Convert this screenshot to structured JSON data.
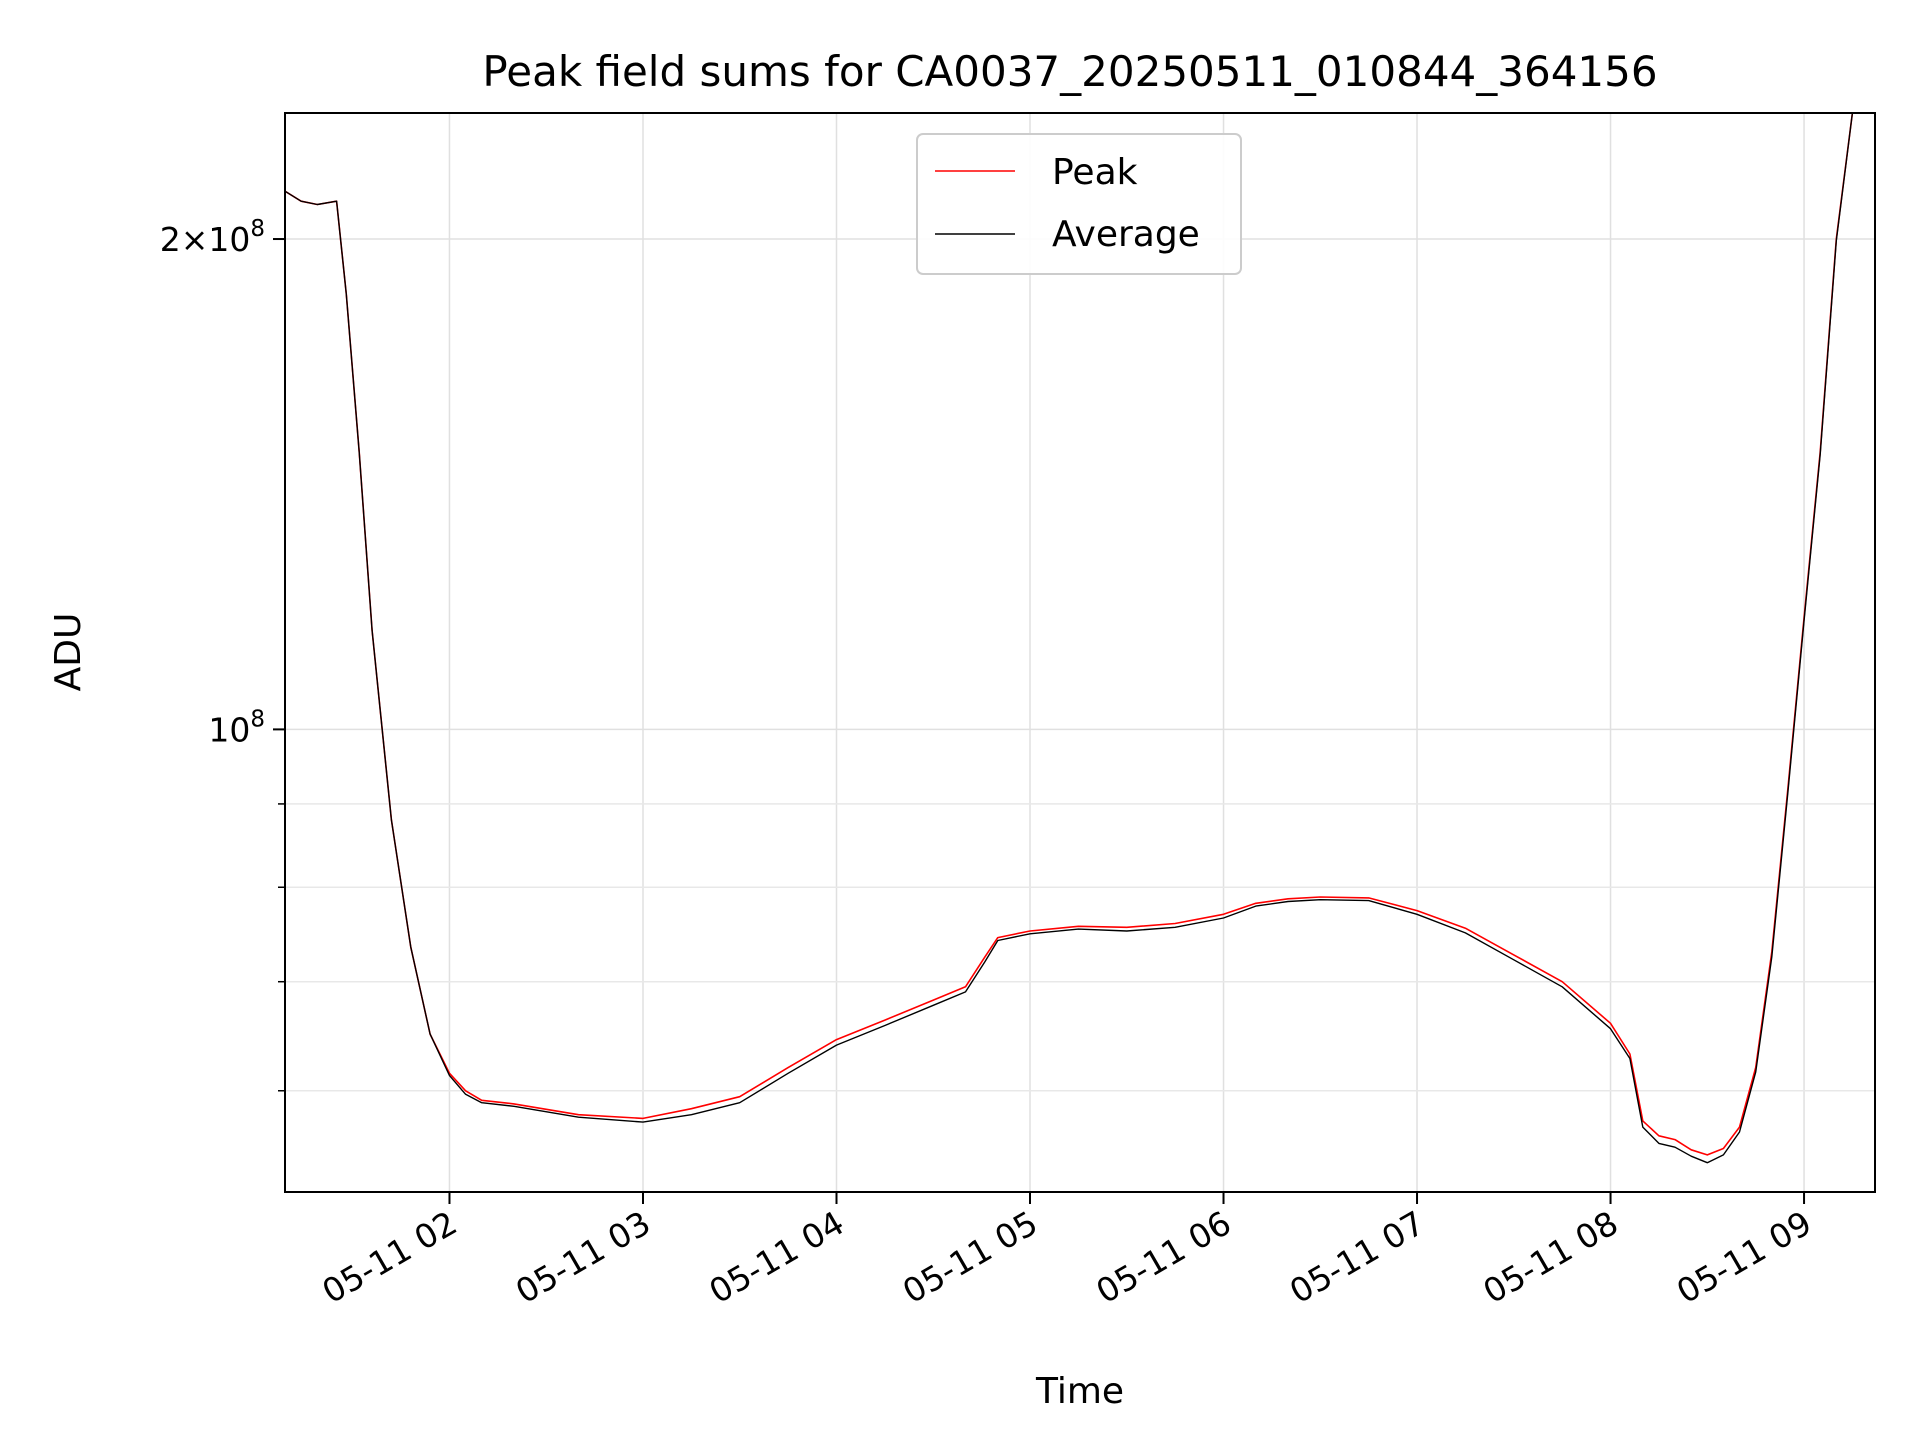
{
  "chart_data": {
    "type": "line",
    "title": "Peak field sums for CA0037_20250511_010844_364156",
    "xlabel": "Time",
    "ylabel": "ADU",
    "yscale": "log",
    "grid": true,
    "legend_position": "upper center",
    "x_tick_labels": [
      "05-11 02",
      "05-11 03",
      "05-11 04",
      "05-11 05",
      "05-11 06",
      "05-11 07",
      "05-11 08",
      "05-11 09"
    ],
    "xlim": [
      "2025-05-11T01:09:00",
      "2025-05-11T09:22:00"
    ],
    "ylim": [
      52000000,
      239000000
    ],
    "y_major_ticks": [
      {
        "value": 100000000,
        "mantissa": "",
        "base": "10",
        "exp": "8"
      },
      {
        "value": 200000000,
        "mantissa": "2×",
        "base": "10",
        "exp": "8"
      }
    ],
    "y_minor_ticks": [
      60000000,
      70000000,
      80000000,
      90000000
    ],
    "series": [
      {
        "name": "Peak",
        "color": "#ff0000",
        "x": [
          "2025-05-11T01:09:00",
          "2025-05-11T01:14:00",
          "2025-05-11T01:19:00",
          "2025-05-11T01:25:00",
          "2025-05-11T01:28:00",
          "2025-05-11T01:32:00",
          "2025-05-11T01:36:00",
          "2025-05-11T01:42:00",
          "2025-05-11T01:48:00",
          "2025-05-11T01:54:00",
          "2025-05-11T02:00:00",
          "2025-05-11T02:05:00",
          "2025-05-11T02:10:00",
          "2025-05-11T02:20:00",
          "2025-05-11T02:40:00",
          "2025-05-11T03:00:00",
          "2025-05-11T03:15:00",
          "2025-05-11T03:30:00",
          "2025-05-11T03:45:00",
          "2025-05-11T04:00:00",
          "2025-05-11T04:15:00",
          "2025-05-11T04:30:00",
          "2025-05-11T04:40:00",
          "2025-05-11T04:46:00",
          "2025-05-11T04:50:00",
          "2025-05-11T05:00:00",
          "2025-05-11T05:15:00",
          "2025-05-11T05:30:00",
          "2025-05-11T05:45:00",
          "2025-05-11T06:00:00",
          "2025-05-11T06:10:00",
          "2025-05-11T06:20:00",
          "2025-05-11T06:30:00",
          "2025-05-11T06:45:00",
          "2025-05-11T07:00:00",
          "2025-05-11T07:15:00",
          "2025-05-11T07:30:00",
          "2025-05-11T07:45:00",
          "2025-05-11T08:00:00",
          "2025-05-11T08:06:00",
          "2025-05-11T08:10:00",
          "2025-05-11T08:15:00",
          "2025-05-11T08:20:00",
          "2025-05-11T08:25:00",
          "2025-05-11T08:30:00",
          "2025-05-11T08:35:00",
          "2025-05-11T08:40:00",
          "2025-05-11T08:45:00",
          "2025-05-11T08:50:00",
          "2025-05-11T08:55:00",
          "2025-05-11T09:00:00",
          "2025-05-11T09:05:00",
          "2025-05-11T09:10:00",
          "2025-05-11T09:15:00"
        ],
        "y": [
          214000000,
          211000000,
          210000000,
          211000000,
          185000000,
          148000000,
          115000000,
          88000000,
          73500000,
          65000000,
          61500000,
          60000000,
          59200000,
          58900000,
          58000000,
          57700000,
          58500000,
          59500000,
          62000000,
          64500000,
          66300000,
          68200000,
          69500000,
          72500000,
          74500000,
          75200000,
          75700000,
          75600000,
          76000000,
          77000000,
          78200000,
          78700000,
          78900000,
          78800000,
          77400000,
          75500000,
          72700000,
          70000000,
          66000000,
          63200000,
          57500000,
          56300000,
          56000000,
          55200000,
          54800000,
          55300000,
          57000000,
          62000000,
          73000000,
          92000000,
          117000000,
          148000000,
          200000000,
          239000000
        ]
      },
      {
        "name": "Average",
        "color": "#000000",
        "x": [
          "2025-05-11T01:09:00",
          "2025-05-11T01:14:00",
          "2025-05-11T01:19:00",
          "2025-05-11T01:25:00",
          "2025-05-11T01:28:00",
          "2025-05-11T01:32:00",
          "2025-05-11T01:36:00",
          "2025-05-11T01:42:00",
          "2025-05-11T01:48:00",
          "2025-05-11T01:54:00",
          "2025-05-11T02:00:00",
          "2025-05-11T02:05:00",
          "2025-05-11T02:10:00",
          "2025-05-11T02:20:00",
          "2025-05-11T02:40:00",
          "2025-05-11T03:00:00",
          "2025-05-11T03:15:00",
          "2025-05-11T03:30:00",
          "2025-05-11T03:45:00",
          "2025-05-11T04:00:00",
          "2025-05-11T04:15:00",
          "2025-05-11T04:30:00",
          "2025-05-11T04:40:00",
          "2025-05-11T04:46:00",
          "2025-05-11T04:50:00",
          "2025-05-11T05:00:00",
          "2025-05-11T05:15:00",
          "2025-05-11T05:30:00",
          "2025-05-11T05:45:00",
          "2025-05-11T06:00:00",
          "2025-05-11T06:10:00",
          "2025-05-11T06:20:00",
          "2025-05-11T06:30:00",
          "2025-05-11T06:45:00",
          "2025-05-11T07:00:00",
          "2025-05-11T07:15:00",
          "2025-05-11T07:30:00",
          "2025-05-11T07:45:00",
          "2025-05-11T08:00:00",
          "2025-05-11T08:06:00",
          "2025-05-11T08:10:00",
          "2025-05-11T08:15:00",
          "2025-05-11T08:20:00",
          "2025-05-11T08:25:00",
          "2025-05-11T08:30:00",
          "2025-05-11T08:35:00",
          "2025-05-11T08:40:00",
          "2025-05-11T08:45:00",
          "2025-05-11T08:50:00",
          "2025-05-11T08:55:00",
          "2025-05-11T09:00:00",
          "2025-05-11T09:05:00",
          "2025-05-11T09:10:00",
          "2025-05-11T09:15:00"
        ],
        "y": [
          214000000,
          211000000,
          210000000,
          211000000,
          185000000,
          148000000,
          115000000,
          88000000,
          73500000,
          65000000,
          61300000,
          59700000,
          59000000,
          58700000,
          57800000,
          57400000,
          58000000,
          59000000,
          61500000,
          64000000,
          65800000,
          67700000,
          69000000,
          72000000,
          74200000,
          74900000,
          75400000,
          75200000,
          75600000,
          76600000,
          77900000,
          78400000,
          78600000,
          78500000,
          77000000,
          75000000,
          72200000,
          69500000,
          65500000,
          62800000,
          57000000,
          55700000,
          55400000,
          54700000,
          54200000,
          54800000,
          56600000,
          61600000,
          72500000,
          91500000,
          116500000,
          147500000,
          199500000,
          239000000
        ]
      }
    ]
  }
}
